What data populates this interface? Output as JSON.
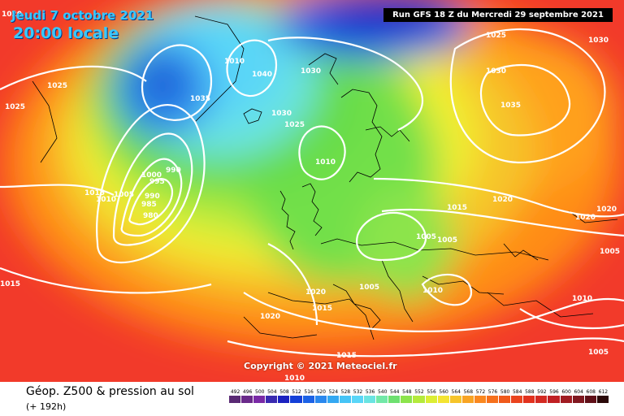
{
  "header": {
    "date_label": "Jeudi 7 octobre 2021",
    "time_label": "20:00 locale",
    "run_label": "Run GFS 18 Z du Mercredi 29 septembre 2021"
  },
  "map": {
    "copyright": "Copyright © 2021 Meteociel.fr",
    "pressure_labels": [
      "1020",
      "1025",
      "1025",
      "1015",
      "1010",
      "1005",
      "1000",
      "995",
      "990",
      "990",
      "985",
      "980",
      "1010",
      "1040",
      "1030",
      "1030",
      "1025",
      "1010",
      "1030",
      "1035",
      "1025",
      "1030",
      "1035",
      "1020",
      "1015",
      "1020",
      "1020",
      "1005",
      "1005",
      "1005",
      "1015",
      "1010",
      "1005",
      "1010",
      "1020",
      "1015",
      "1020",
      "1015",
      "1010",
      "1005"
    ],
    "colors": {
      "low_core": "#1a5fd4",
      "cool": "#5ad6ff",
      "mid_green": "#66dc48",
      "yellow": "#f2ef32",
      "warm_orange": "#ff8c14",
      "hot_red": "#f23a2a",
      "isobar": "#ffffff",
      "coastline": "#000000"
    }
  },
  "footer": {
    "title": "Géop. Z500 & pression au sol",
    "lead_time": "(+ 192h)"
  },
  "legend": {
    "values": [
      "492",
      "496",
      "500",
      "504",
      "508",
      "512",
      "516",
      "520",
      "524",
      "528",
      "532",
      "536",
      "540",
      "544",
      "548",
      "552",
      "556",
      "560",
      "564",
      "568",
      "572",
      "576",
      "580",
      "584",
      "588",
      "592",
      "596",
      "600",
      "604",
      "608",
      "612"
    ],
    "colors": [
      "#5a2a74",
      "#6a2a8a",
      "#7a2aa6",
      "#3a2ab0",
      "#1c22c0",
      "#1440d8",
      "#1c62e6",
      "#2a88ee",
      "#34a8f2",
      "#46c4f6",
      "#5ad6f8",
      "#6ae4e2",
      "#72e8a8",
      "#6ee070",
      "#8ce44c",
      "#b4ea3c",
      "#dcee34",
      "#f4e432",
      "#f6c42a",
      "#f8a424",
      "#fa8820",
      "#f6701c",
      "#f05a1c",
      "#ea441e",
      "#e2321e",
      "#d42a22",
      "#c02024",
      "#a01c22",
      "#801820",
      "#601018",
      "#2a0808"
    ]
  }
}
